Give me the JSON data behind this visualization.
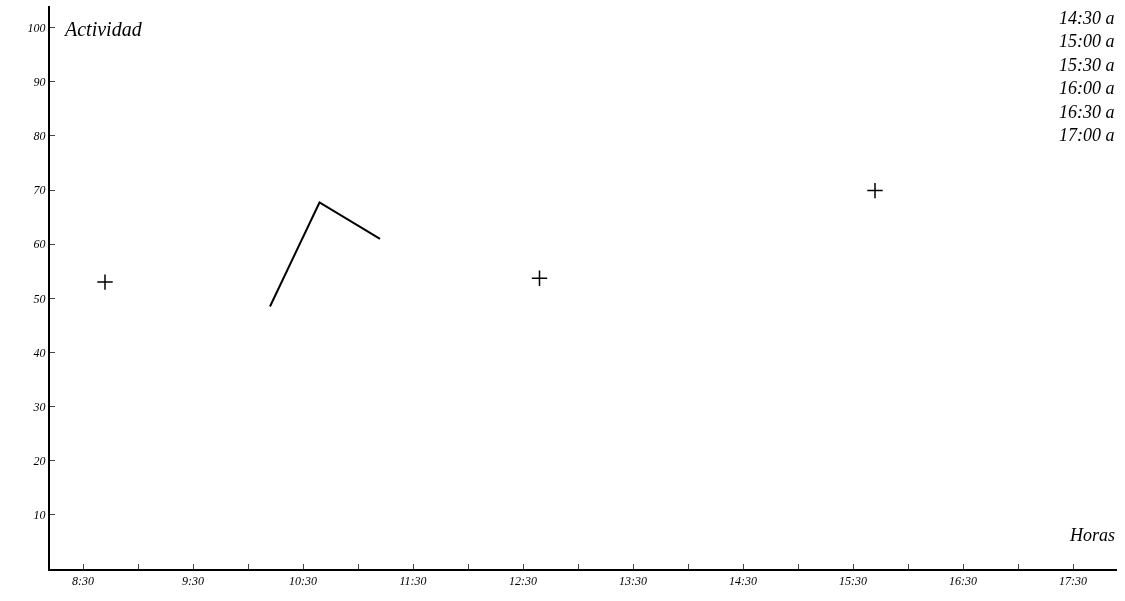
{
  "chart_data": {
    "type": "line",
    "xlabel": "Horas",
    "ylabel": "Actividad",
    "annotations": [
      "14:30 a",
      "15:00 a",
      "15:30 a",
      "16:00 a",
      "16:30 a",
      "17:00 a"
    ],
    "series": [
      {
        "color": "#000000",
        "x": [
          10.2,
          10.65,
          11.2
        ],
        "values": [
          48.5,
          67.7,
          61
        ],
        "marker": "none",
        "line_style": "solid"
      },
      {
        "type": "scatter",
        "color": "#000000",
        "x": [
          8.7,
          12.65,
          15.7
        ],
        "values": [
          53,
          53.7,
          69.9
        ],
        "marker": "cross"
      }
    ],
    "xlim": [
      8.2,
      17.9
    ],
    "xticks": [
      {
        "value": 8.5,
        "label": "8:30"
      },
      {
        "value": 9,
        "label": null
      },
      {
        "value": 9.5,
        "label": "9:30"
      },
      {
        "value": 10,
        "label": null
      },
      {
        "value": 10.5,
        "label": "10:30"
      },
      {
        "value": 11,
        "label": null
      },
      {
        "value": 11.5,
        "label": "11:30"
      },
      {
        "value": 12,
        "label": null
      },
      {
        "value": 12.5,
        "label": "12:30"
      },
      {
        "value": 13,
        "label": null
      },
      {
        "value": 13.5,
        "label": "13:30"
      },
      {
        "value": 14,
        "label": null
      },
      {
        "value": 14.5,
        "label": "14:30"
      },
      {
        "value": 15,
        "label": null
      },
      {
        "value": 15.5,
        "label": "15:30"
      },
      {
        "value": 16,
        "label": null
      },
      {
        "value": 16.5,
        "label": "16:30"
      },
      {
        "value": 17,
        "label": null
      },
      {
        "value": 17.5,
        "label": "17:30"
      }
    ],
    "ylim": [
      0,
      104
    ],
    "yticks": [
      10,
      20,
      30,
      40,
      50,
      60,
      70,
      80,
      90,
      100
    ]
  }
}
